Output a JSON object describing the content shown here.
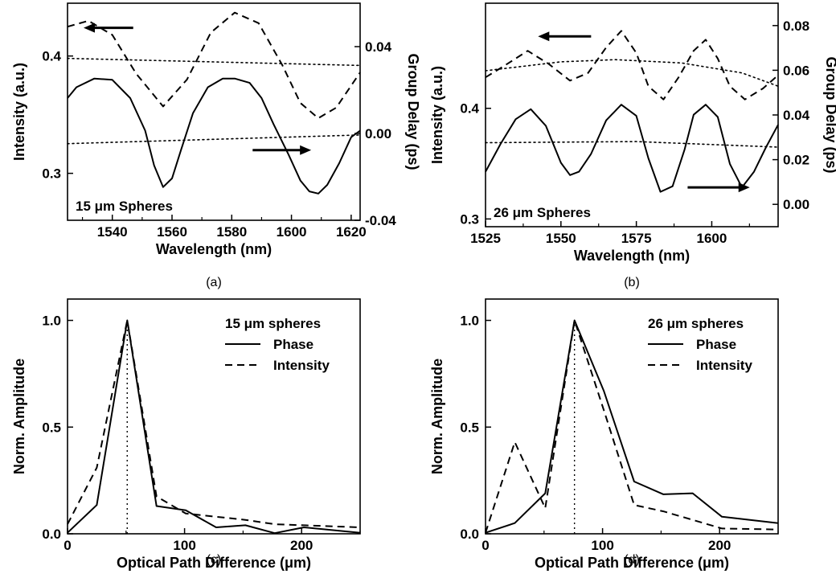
{
  "chart_data": [
    {
      "panel": "(a)",
      "type": "line",
      "xlabel": "Wavelength (nm)",
      "ylabel": "Intensity (a.u.)",
      "y2label": "Group Delay (ps)",
      "xlim": [
        1525,
        1623
      ],
      "ylim": [
        0.26,
        0.445
      ],
      "y2lim": [
        -0.04,
        0.06
      ],
      "xticks": [
        1540,
        1560,
        1580,
        1600,
        1620
      ],
      "yticks": [
        0.3,
        0.4
      ],
      "y2ticks": [
        -0.04,
        0.0,
        0.04
      ],
      "annotation": "15 μm Spheres",
      "series": [
        {
          "axis": "left",
          "style": "dashed",
          "x": [
            1525,
            1532,
            1540,
            1548,
            1557,
            1565,
            1573,
            1581,
            1589,
            1597,
            1603,
            1609,
            1615,
            1623
          ],
          "y": [
            0.425,
            0.43,
            0.418,
            0.385,
            0.357,
            0.38,
            0.42,
            0.437,
            0.428,
            0.392,
            0.36,
            0.347,
            0.356,
            0.386
          ]
        },
        {
          "axis": "left",
          "style": "dotted",
          "x": [
            1525,
            1623
          ],
          "y": [
            0.398,
            0.392
          ]
        },
        {
          "axis": "right",
          "style": "solid",
          "x": [
            1525,
            1528,
            1534,
            1540,
            1546,
            1551,
            1554,
            1557,
            1560,
            1563,
            1567,
            1572,
            1577,
            1581,
            1586,
            1590,
            1594,
            1599,
            1603,
            1606,
            1609,
            1612,
            1616,
            1620,
            1623
          ],
          "y": [
            0.0163,
            0.0213,
            0.0253,
            0.0247,
            0.0163,
            0.0013,
            -0.0147,
            -0.0247,
            -0.0207,
            -0.0077,
            0.0093,
            0.0213,
            0.0253,
            0.0253,
            0.0233,
            0.0163,
            0.0043,
            -0.0097,
            -0.0217,
            -0.0267,
            -0.0277,
            -0.0237,
            -0.0137,
            -0.0017,
            0.0013
          ]
        },
        {
          "axis": "right",
          "style": "dotted",
          "x": [
            1525,
            1623
          ],
          "y": [
            -0.0047,
            -0.0007
          ]
        }
      ],
      "arrows": [
        {
          "direction": "left",
          "points_to_axis": "left",
          "x": [
            1547,
            1532
          ],
          "y": [
            0.424,
            0.424
          ]
        },
        {
          "direction": "right",
          "points_to_axis": "right",
          "x": [
            1587,
            1605
          ],
          "y": [
            -0.0077,
            -0.0077
          ]
        }
      ]
    },
    {
      "panel": "(b)",
      "type": "line",
      "xlabel": "Wavelength (nm)",
      "ylabel": "Intensity (a.u.)",
      "y2label": "Group Delay (ps)",
      "xlim": [
        1525,
        1622
      ],
      "ylim": [
        0.293,
        0.495
      ],
      "y2lim": [
        -0.01,
        0.09
      ],
      "xticks": [
        1525,
        1550,
        1575,
        1600
      ],
      "yticks": [
        0.3,
        0.4
      ],
      "y2ticks": [
        0.0,
        0.02,
        0.04,
        0.06,
        0.08
      ],
      "annotation": "26 μm Spheres",
      "series": [
        {
          "axis": "left",
          "style": "dashed",
          "x": [
            1525,
            1531,
            1539,
            1546,
            1553,
            1559,
            1565,
            1570,
            1575,
            1579,
            1584,
            1589,
            1594,
            1598,
            1602,
            1606,
            1611,
            1617,
            1622
          ],
          "y": [
            0.428,
            0.438,
            0.452,
            0.44,
            0.425,
            0.432,
            0.455,
            0.47,
            0.45,
            0.42,
            0.408,
            0.428,
            0.452,
            0.462,
            0.445,
            0.42,
            0.408,
            0.418,
            0.43
          ]
        },
        {
          "axis": "left",
          "style": "dotted",
          "x": [
            1525,
            1550,
            1568,
            1590,
            1610,
            1622
          ],
          "y": [
            0.434,
            0.442,
            0.444,
            0.441,
            0.432,
            0.42
          ]
        },
        {
          "axis": "right",
          "style": "solid",
          "x": [
            1525,
            1530,
            1535,
            1540,
            1545,
            1550,
            1553,
            1556,
            1560,
            1565,
            1570,
            1575,
            1579,
            1583,
            1587,
            1591,
            1594,
            1598,
            1602,
            1606,
            1610,
            1614,
            1618,
            1622
          ],
          "y": [
            0.0146,
            0.0271,
            0.0381,
            0.0426,
            0.0351,
            0.0186,
            0.0131,
            0.0146,
            0.0226,
            0.0376,
            0.0446,
            0.0396,
            0.0206,
            0.0056,
            0.0081,
            0.0246,
            0.0401,
            0.0446,
            0.0391,
            0.0181,
            0.0076,
            0.0146,
            0.0256,
            0.0356
          ]
        },
        {
          "axis": "right",
          "style": "dotted",
          "x": [
            1525,
            1575,
            1622
          ],
          "y": [
            0.0276,
            0.0281,
            0.0256
          ]
        }
      ],
      "arrows": [
        {
          "direction": "left",
          "points_to_axis": "left",
          "x": [
            1560,
            1544
          ],
          "y": [
            0.465,
            0.465
          ]
        },
        {
          "direction": "right",
          "points_to_axis": "right",
          "x": [
            1592,
            1611
          ],
          "y": [
            0.0076,
            0.0076
          ]
        }
      ]
    },
    {
      "panel": "(c)",
      "type": "line",
      "xlabel": "Optical Path Difference (μm)",
      "ylabel": "Norm. Amplitude",
      "xlim": [
        0,
        250
      ],
      "ylim": [
        0,
        1.1
      ],
      "xticks": [
        0,
        100,
        200
      ],
      "yticks": [
        0.0,
        0.5,
        1.0
      ],
      "legend": {
        "title": "15 μm spheres",
        "position": "top-right"
      },
      "vline": 51,
      "series": [
        {
          "name": "Phase",
          "style": "solid",
          "x": [
            0,
            25,
            51,
            76,
            101,
            127,
            152,
            177,
            202,
            250
          ],
          "y": [
            0.005,
            0.135,
            1.0,
            0.13,
            0.11,
            0.03,
            0.04,
            0.003,
            0.03,
            0.005
          ]
        },
        {
          "name": "Intensity",
          "style": "dashed",
          "x": [
            0,
            25,
            51,
            76,
            101,
            127,
            152,
            177,
            202,
            250
          ],
          "y": [
            0.045,
            0.31,
            1.0,
            0.175,
            0.095,
            0.08,
            0.065,
            0.045,
            0.04,
            0.03
          ]
        }
      ]
    },
    {
      "panel": "(d)",
      "type": "line",
      "xlabel": "Optical Path Difference (μm)",
      "ylabel": "Norm. Amplitude",
      "xlim": [
        0,
        250
      ],
      "ylim": [
        0,
        1.1
      ],
      "xticks": [
        0,
        100,
        200
      ],
      "yticks": [
        0.0,
        0.5,
        1.0
      ],
      "legend": {
        "title": "26 μm spheres",
        "position": "top-right"
      },
      "vline": 76,
      "series": [
        {
          "name": "Phase",
          "style": "solid",
          "x": [
            0,
            25,
            51,
            76,
            101,
            127,
            152,
            177,
            202,
            250
          ],
          "y": [
            0.005,
            0.05,
            0.19,
            1.0,
            0.67,
            0.245,
            0.185,
            0.19,
            0.08,
            0.05
          ]
        },
        {
          "name": "Intensity",
          "style": "dashed",
          "x": [
            0,
            25,
            51,
            76,
            101,
            127,
            152,
            177,
            202,
            250
          ],
          "y": [
            0.005,
            0.43,
            0.12,
            1.0,
            0.58,
            0.135,
            0.105,
            0.065,
            0.025,
            0.02
          ]
        }
      ]
    }
  ]
}
